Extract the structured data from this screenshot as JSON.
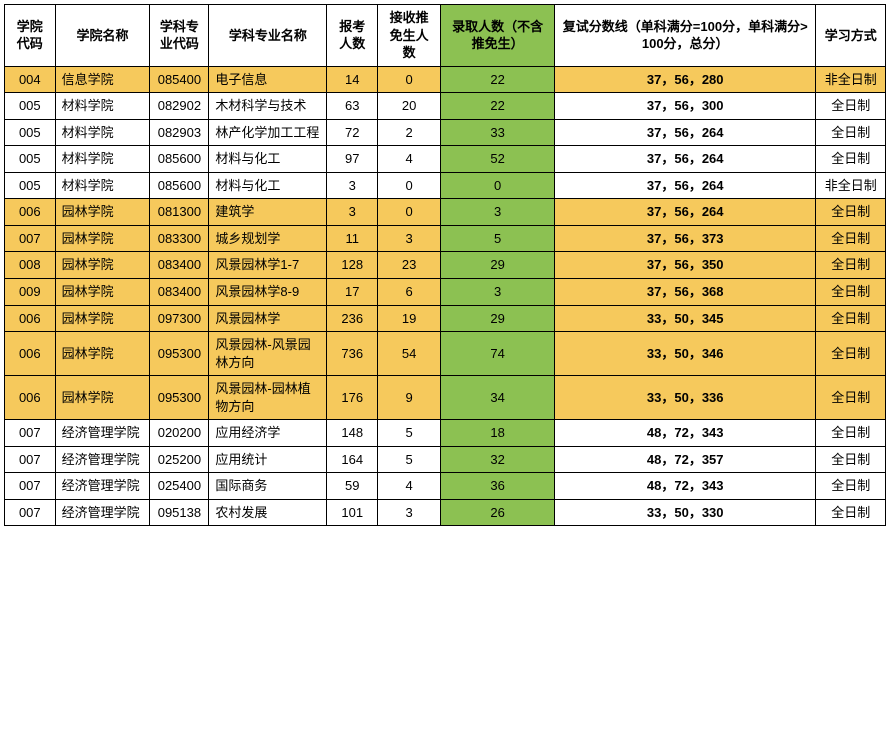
{
  "headers": {
    "code": "学院代码",
    "cname": "学院名称",
    "scode": "学科专业代码",
    "sname": "学科专业名称",
    "apply": "报考人数",
    "rec": "接收推免生人数",
    "admit": "录取人数（不含推免生）",
    "score": "复试分数线（单科满分=100分，单科满分>100分，总分）",
    "mode": "学习方式"
  },
  "style": {
    "yellow": "#f6c95c",
    "green": "#8cc152",
    "border": "#000000",
    "header_fontsize": 13,
    "cell_fontsize": 13
  },
  "rows": [
    {
      "yellow": true,
      "code": "004",
      "cname": "信息学院",
      "scode": "085400",
      "sname": "电子信息",
      "apply": "14",
      "rec": "0",
      "admit": "22",
      "score": "37，56，280",
      "mode": "非全日制"
    },
    {
      "yellow": false,
      "code": "005",
      "cname": "材料学院",
      "scode": "082902",
      "sname": "木材科学与技术",
      "apply": "63",
      "rec": "20",
      "admit": "22",
      "score": "37，56，300",
      "mode": "全日制"
    },
    {
      "yellow": false,
      "code": "005",
      "cname": "材料学院",
      "scode": "082903",
      "sname": "林产化学加工工程",
      "apply": "72",
      "rec": "2",
      "admit": "33",
      "score": "37，56，264",
      "mode": "全日制"
    },
    {
      "yellow": false,
      "code": "005",
      "cname": "材料学院",
      "scode": "085600",
      "sname": "材料与化工",
      "apply": "97",
      "rec": "4",
      "admit": "52",
      "score": "37，56，264",
      "mode": "全日制"
    },
    {
      "yellow": false,
      "code": "005",
      "cname": "材料学院",
      "scode": "085600",
      "sname": "材料与化工",
      "apply": "3",
      "rec": "0",
      "admit": "0",
      "score": "37，56，264",
      "mode": "非全日制"
    },
    {
      "yellow": true,
      "code": "006",
      "cname": "园林学院",
      "scode": "081300",
      "sname": "建筑学",
      "apply": "3",
      "rec": "0",
      "admit": "3",
      "score": "37，56，264",
      "mode": "全日制"
    },
    {
      "yellow": true,
      "code": "007",
      "cname": "园林学院",
      "scode": "083300",
      "sname": "城乡规划学",
      "apply": "11",
      "rec": "3",
      "admit": "5",
      "score": "37，56，373",
      "mode": "全日制"
    },
    {
      "yellow": true,
      "code": "008",
      "cname": "园林学院",
      "scode": "083400",
      "sname": "风景园林学1-7",
      "apply": "128",
      "rec": "23",
      "admit": "29",
      "score": "37，56，350",
      "mode": "全日制"
    },
    {
      "yellow": true,
      "code": "009",
      "cname": "园林学院",
      "scode": "083400",
      "sname": "风景园林学8-9",
      "apply": "17",
      "rec": "6",
      "admit": "3",
      "score": "37，56，368",
      "mode": "全日制"
    },
    {
      "yellow": true,
      "code": "006",
      "cname": "园林学院",
      "scode": "097300",
      "sname": "风景园林学",
      "apply": "236",
      "rec": "19",
      "admit": "29",
      "score": "33，50，345",
      "mode": "全日制"
    },
    {
      "yellow": true,
      "code": "006",
      "cname": "园林学院",
      "scode": "095300",
      "sname": "风景园林-风景园林方向",
      "apply": "736",
      "rec": "54",
      "admit": "74",
      "score": "33，50，346",
      "mode": "全日制"
    },
    {
      "yellow": true,
      "code": "006",
      "cname": "园林学院",
      "scode": "095300",
      "sname": "风景园林-园林植物方向",
      "apply": "176",
      "rec": "9",
      "admit": "34",
      "score": "33，50，336",
      "mode": "全日制"
    },
    {
      "yellow": false,
      "code": "007",
      "cname": "经济管理学院",
      "scode": "020200",
      "sname": "应用经济学",
      "apply": "148",
      "rec": "5",
      "admit": "18",
      "score": "48，72，343",
      "mode": "全日制"
    },
    {
      "yellow": false,
      "code": "007",
      "cname": "经济管理学院",
      "scode": "025200",
      "sname": "应用统计",
      "apply": "164",
      "rec": "5",
      "admit": "32",
      "score": "48，72，357",
      "mode": "全日制"
    },
    {
      "yellow": false,
      "code": "007",
      "cname": "经济管理学院",
      "scode": "025400",
      "sname": "国际商务",
      "apply": "59",
      "rec": "4",
      "admit": "36",
      "score": "48，72，343",
      "mode": "全日制"
    },
    {
      "yellow": false,
      "code": "007",
      "cname": "经济管理学院",
      "scode": "095138",
      "sname": "农村发展",
      "apply": "101",
      "rec": "3",
      "admit": "26",
      "score": "33，50，330",
      "mode": "全日制"
    }
  ]
}
